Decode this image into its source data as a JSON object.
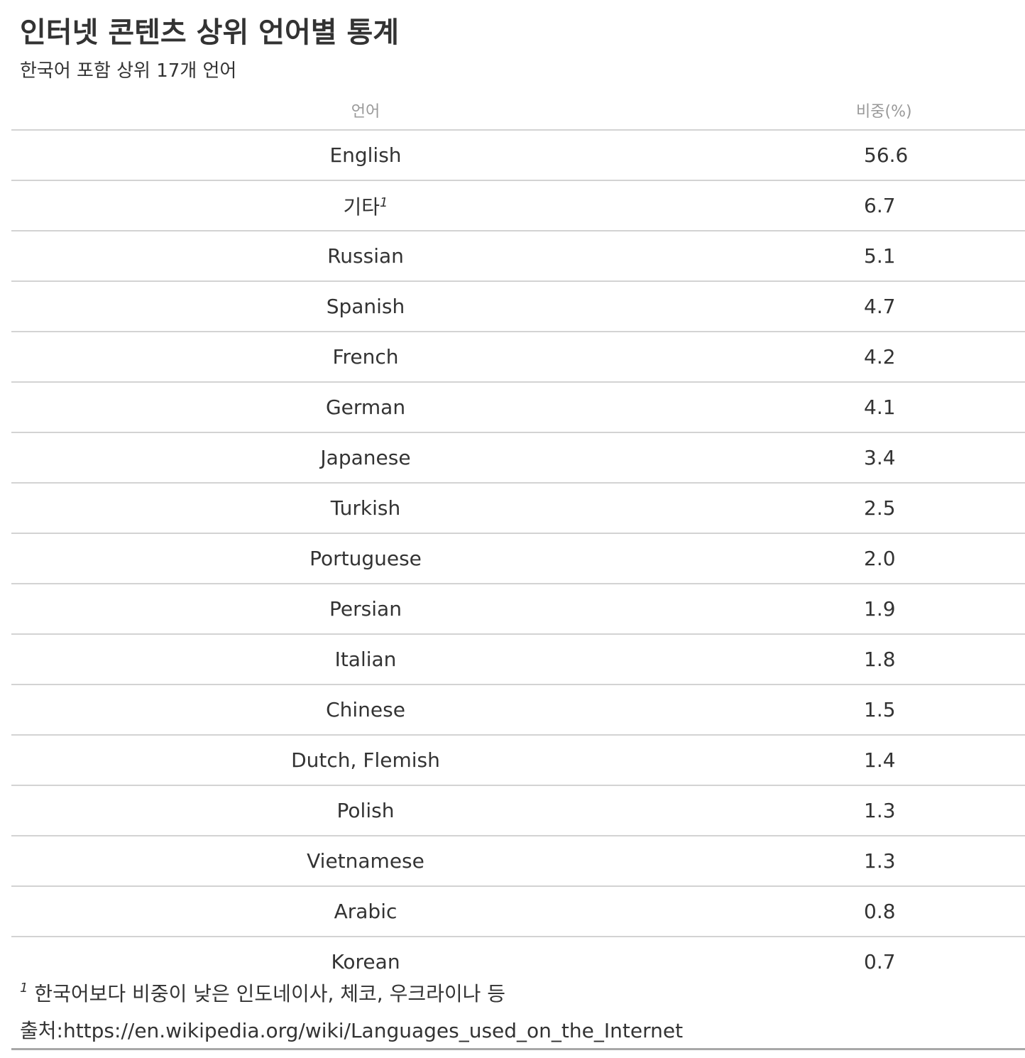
{
  "header": {
    "title": "인터넷 콘텐츠 상위 언어별 통계",
    "subtitle": "한국어 포함 상위 17개 언어"
  },
  "chart_data": {
    "type": "table",
    "title": "인터넷 콘텐츠 상위 언어별 통계",
    "subtitle": "한국어 포함 상위 17개 언어",
    "columns": [
      "언어",
      "비중(%)"
    ],
    "rows": [
      {
        "language": "English",
        "share": "56.6",
        "footnote_mark": ""
      },
      {
        "language": "기타",
        "share": "6.7",
        "footnote_mark": "1"
      },
      {
        "language": "Russian",
        "share": "5.1",
        "footnote_mark": ""
      },
      {
        "language": "Spanish",
        "share": "4.7",
        "footnote_mark": ""
      },
      {
        "language": "French",
        "share": "4.2",
        "footnote_mark": ""
      },
      {
        "language": "German",
        "share": "4.1",
        "footnote_mark": ""
      },
      {
        "language": "Japanese",
        "share": "3.4",
        "footnote_mark": ""
      },
      {
        "language": "Turkish",
        "share": "2.5",
        "footnote_mark": ""
      },
      {
        "language": "Portuguese",
        "share": "2.0",
        "footnote_mark": ""
      },
      {
        "language": "Persian",
        "share": "1.9",
        "footnote_mark": ""
      },
      {
        "language": "Italian",
        "share": "1.8",
        "footnote_mark": ""
      },
      {
        "language": "Chinese",
        "share": "1.5",
        "footnote_mark": ""
      },
      {
        "language": "Dutch, Flemish",
        "share": "1.4",
        "footnote_mark": ""
      },
      {
        "language": "Polish",
        "share": "1.3",
        "footnote_mark": ""
      },
      {
        "language": "Vietnamese",
        "share": "1.3",
        "footnote_mark": ""
      },
      {
        "language": "Arabic",
        "share": "0.8",
        "footnote_mark": ""
      },
      {
        "language": "Korean",
        "share": "0.7",
        "footnote_mark": ""
      }
    ]
  },
  "footnotes": {
    "mark": "1",
    "text": "한국어보다 비중이 낮은 인도네이사, 체코, 우크라이나 등"
  },
  "source": "출처:https://en.wikipedia.org/wiki/Languages_used_on_the_Internet"
}
